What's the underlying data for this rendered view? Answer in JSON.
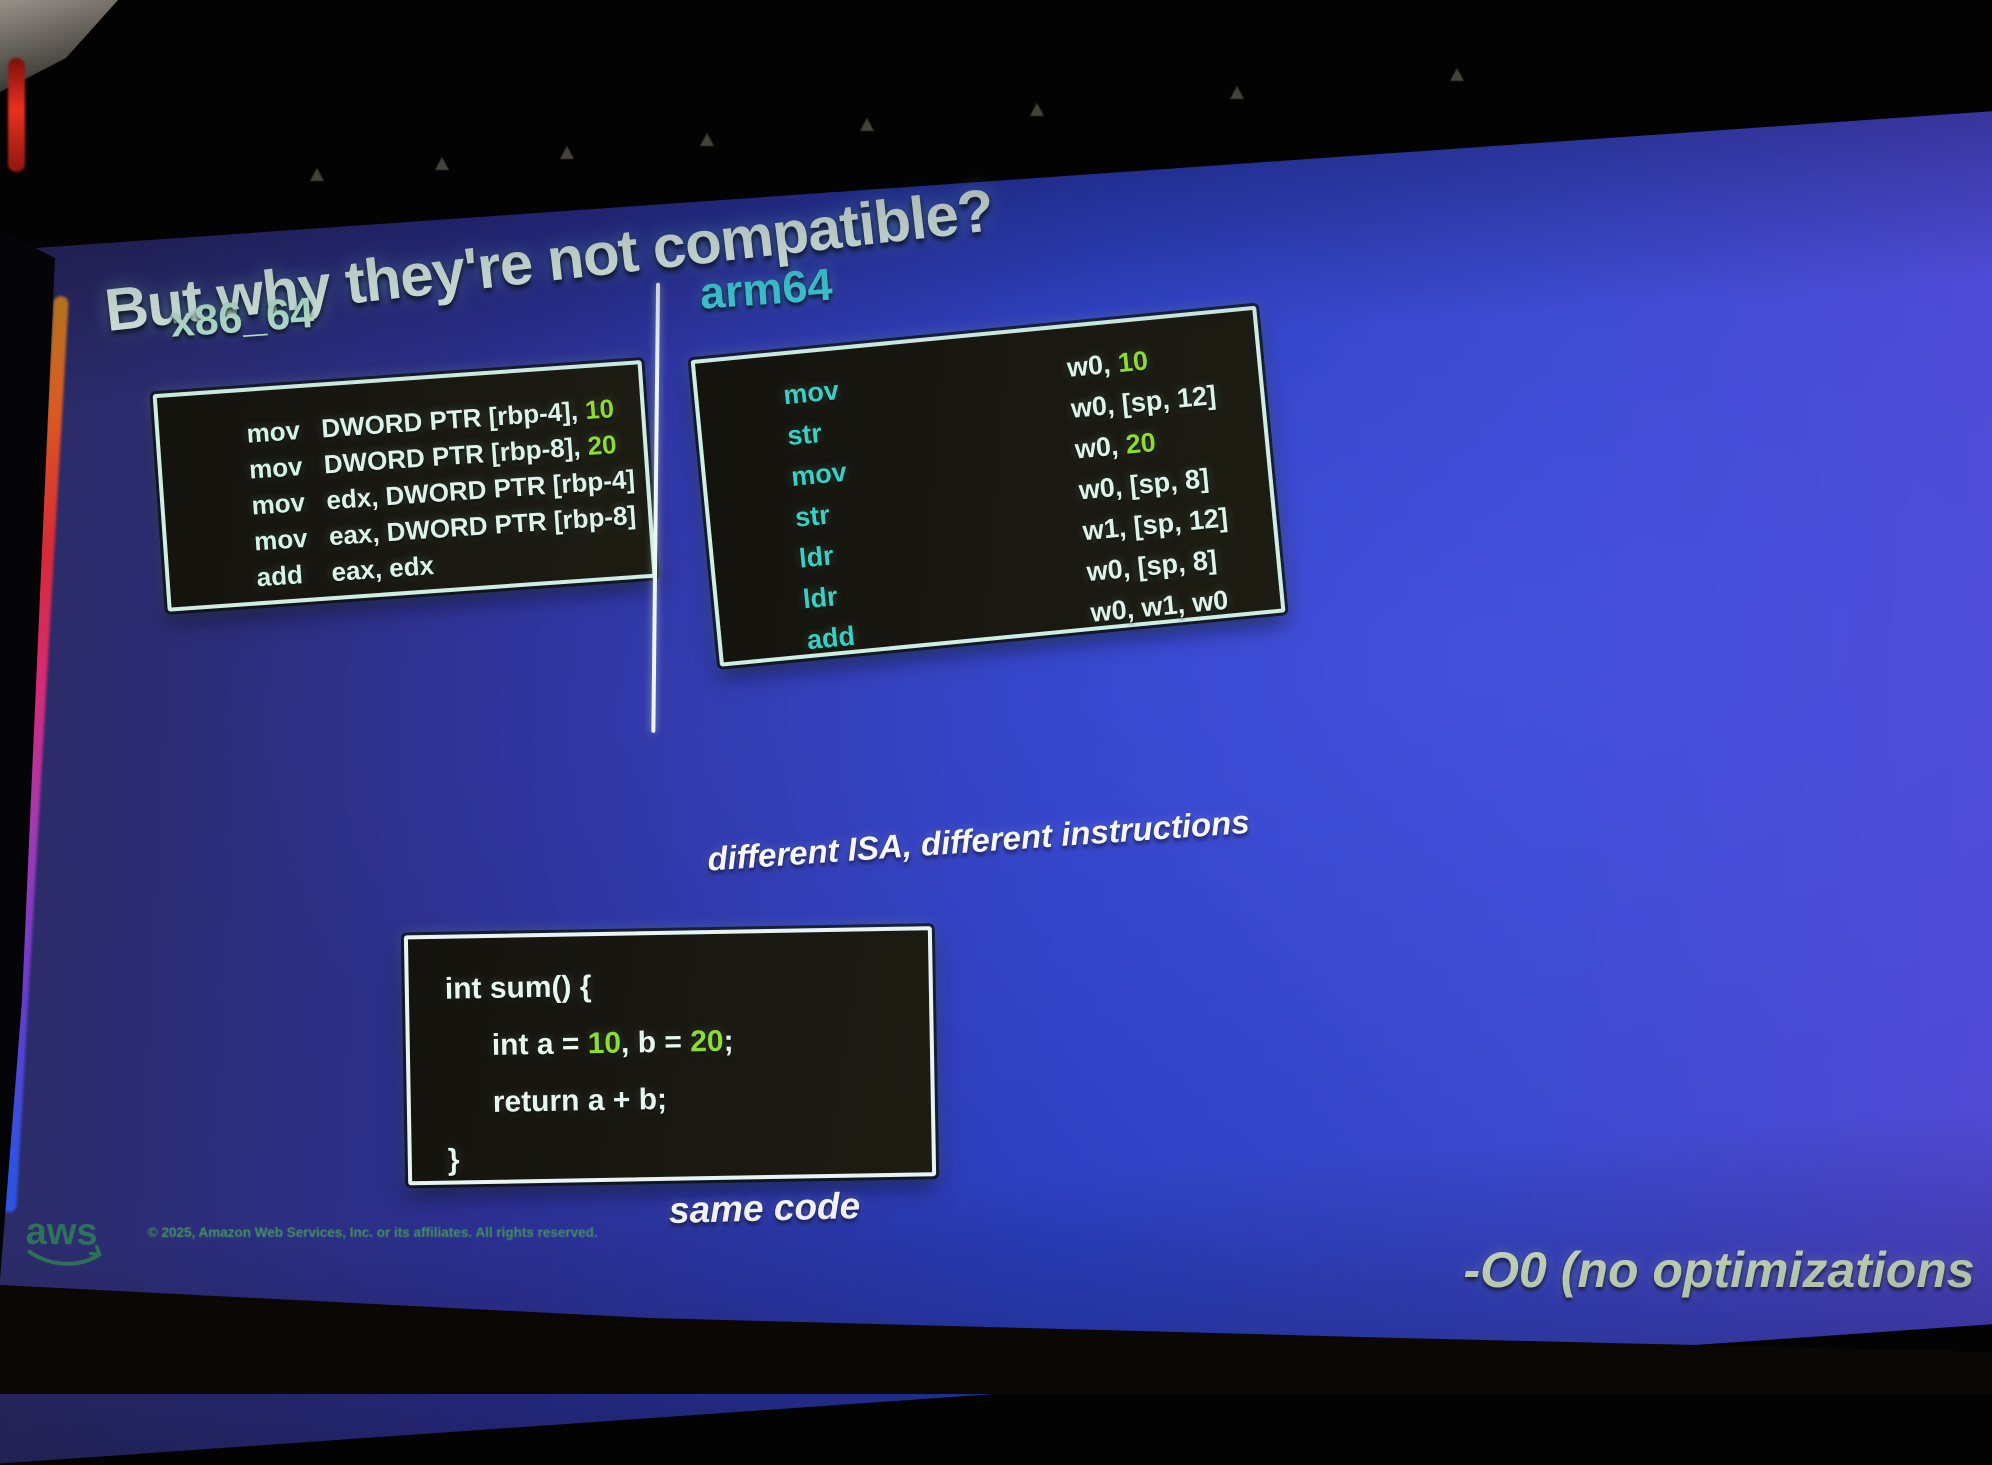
{
  "title": "But why they're not compatible?",
  "columns": {
    "x86": {
      "heading": "x86_64",
      "code": [
        {
          "mn": "mov",
          "ops": [
            {
              "t": "DWORD PTR [rbp-4], "
            },
            {
              "t": "10",
              "num": true
            }
          ]
        },
        {
          "mn": "mov",
          "ops": [
            {
              "t": "DWORD PTR [rbp-8], "
            },
            {
              "t": "20",
              "num": true
            }
          ]
        },
        {
          "mn": "mov",
          "ops": [
            {
              "t": "edx, DWORD PTR [rbp-4]"
            }
          ]
        },
        {
          "mn": "mov",
          "ops": [
            {
              "t": "eax, DWORD PTR [rbp-8]"
            }
          ]
        },
        {
          "mn": "add",
          "ops": [
            {
              "t": "eax, edx"
            }
          ]
        }
      ]
    },
    "arm64": {
      "heading": "arm64",
      "code": [
        {
          "mn": "mov",
          "ops": [
            {
              "t": "w0, "
            },
            {
              "t": "10",
              "num": true
            }
          ]
        },
        {
          "mn": "str",
          "ops": [
            {
              "t": "w0, [sp, 12]"
            }
          ]
        },
        {
          "mn": "mov",
          "ops": [
            {
              "t": "w0, "
            },
            {
              "t": "20",
              "num": true
            }
          ]
        },
        {
          "mn": "str",
          "ops": [
            {
              "t": "w0, [sp, 8]"
            }
          ]
        },
        {
          "mn": "ldr",
          "ops": [
            {
              "t": "w1, [sp, 12]"
            }
          ]
        },
        {
          "mn": "ldr",
          "ops": [
            {
              "t": "w0, [sp, 8]"
            }
          ]
        },
        {
          "mn": "add",
          "ops": [
            {
              "t": "w0, w1, w0"
            }
          ]
        }
      ],
      "caption": "different ISA, different instructions"
    }
  },
  "c_block": {
    "lines": [
      {
        "indent": 0,
        "segs": [
          {
            "t": "int sum() {"
          }
        ]
      },
      {
        "indent": 1,
        "segs": [
          {
            "t": "int a = "
          },
          {
            "t": "10",
            "num": true
          },
          {
            "t": ", b = "
          },
          {
            "t": "20",
            "num": true
          },
          {
            "t": ";"
          }
        ]
      },
      {
        "indent": 1,
        "segs": [
          {
            "t": "return a + b;"
          }
        ]
      },
      {
        "indent": 0,
        "segs": [
          {
            "t": "}"
          }
        ]
      }
    ],
    "caption": "same code"
  },
  "footer": {
    "logo": "aws",
    "copyright": "© 2025, Amazon Web Services, Inc. or its affiliates. All rights reserved.",
    "note": "-O0 (no optimizations"
  },
  "colors": {
    "immediate_green": "#8fdc2e",
    "mnemonic_teal": "#38cfc4",
    "code_text": "#def3ea",
    "heading_x86": "#c2f2dd",
    "heading_arm64": "#41d4e0",
    "title_text": "#e9fdf4",
    "caption_white": "#f5f7fb",
    "note_text": "#dcefd0",
    "logo_green": "#2c7a58"
  }
}
